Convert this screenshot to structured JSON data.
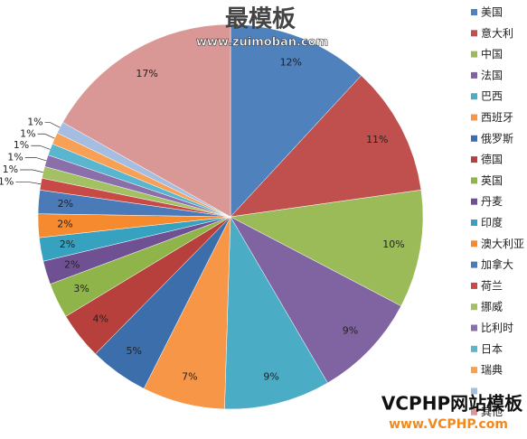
{
  "chart_data": {
    "type": "pie",
    "categories": [
      "美国",
      "意大利",
      "中国",
      "法国",
      "巴西",
      "西班牙",
      "俄罗斯",
      "德国",
      "英国",
      "丹麦",
      "印度",
      "澳大利亚",
      "加拿大",
      "荷兰",
      "挪威",
      "比利时",
      "日本",
      "瑞典",
      null,
      "其他"
    ],
    "values": [
      12,
      11,
      10,
      9,
      9,
      7,
      5,
      4,
      3,
      2,
      2,
      2,
      2,
      1,
      1,
      1,
      1,
      1,
      1,
      17
    ],
    "value_labels": [
      "12%",
      "11%",
      "10%",
      "9%",
      "9%",
      "7%",
      "5%",
      "4%",
      "3%",
      "2%",
      "2%",
      "2%",
      "2%",
      "1%",
      "1%",
      "1%",
      "1%",
      "1%",
      "1%",
      "17%"
    ],
    "colors": [
      "#4f81bd",
      "#c0504d",
      "#9bbb59",
      "#8064a2",
      "#4bacc6",
      "#f79646",
      "#3c6eab",
      "#b8403c",
      "#8fb449",
      "#6f5193",
      "#36a2c0",
      "#f58a2f",
      "#4a7bb8",
      "#c74a47",
      "#a3c164",
      "#8a6fab",
      "#5ab5cf",
      "#f8a055",
      "#a5bde0",
      "#d99795"
    ],
    "annotations": [
      "最模板",
      "www.zuimoban.com",
      "VCPHP网站模板",
      "www.VCPHP.com"
    ]
  }
}
